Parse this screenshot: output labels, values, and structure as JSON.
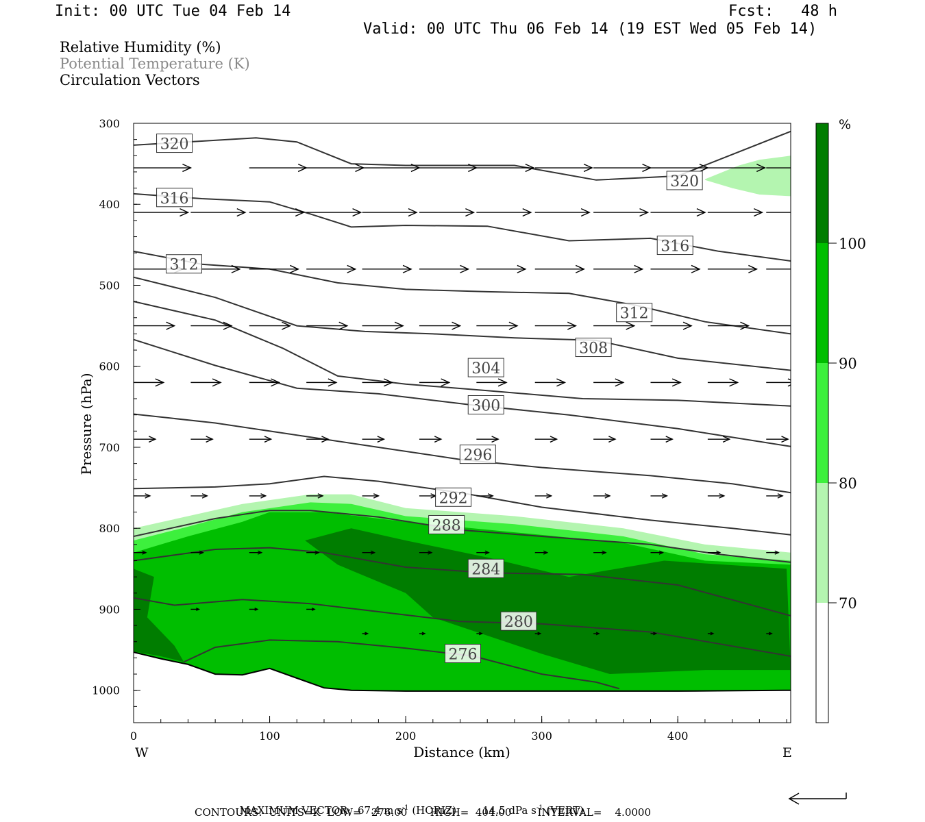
{
  "header": {
    "init": "Init: 00 UTC Tue 04 Feb 14",
    "fcst": "Fcst:   48 h",
    "valid": "Valid: 00 UTC Thu 06 Feb 14 (19 EST Wed 05 Feb 14)",
    "fields": [
      "Relative Humidity (%)",
      "Potential Temperature (K)",
      "Circulation Vectors"
    ]
  },
  "footer": {
    "max_vector_label": "MAXIMUM VECTOR:",
    "max_vector_horiz": "67.4 m s",
    "horiz_tag": "(HORIZ)",
    "max_vector_vert": "14.5 dPa s",
    "vert_tag": "(VERT)",
    "exp": "-1",
    "contours": "CONTOURS:  UNITS=K  LOW=   276.00       HIGH=  404.00        INTERVAL=    4.0000"
  },
  "colors": {
    "rh70": "#b4f5b0",
    "rh80": "#3df03d",
    "rh90": "#00be00",
    "rh100": "#007d00",
    "theta": "#333333",
    "vector": "#000000"
  },
  "chart_data": {
    "type": "cross-section",
    "xlabel": "Distance (km)",
    "ylabel": "Pressure (hPa)",
    "x_ticks": [
      0,
      100,
      200,
      300,
      400
    ],
    "y_ticks": [
      300,
      400,
      500,
      600,
      700,
      800,
      900,
      1000
    ],
    "xlim": [
      0,
      483
    ],
    "ylim": [
      300,
      1040
    ],
    "end_labels": {
      "left": "W",
      "right": "E"
    },
    "colorbar": {
      "unit": "%",
      "ticks": [
        70,
        80,
        90,
        100
      ]
    },
    "theta_contours": [
      {
        "value": 320,
        "x": [
          0,
          50,
          90,
          120,
          160,
          200,
          280,
          340,
          400,
          483
        ],
        "p": [
          327,
          322,
          318,
          323,
          350,
          352,
          352,
          370,
          365,
          310
        ],
        "labels": [
          {
            "text": "320",
            "x": 30,
            "p": 325
          },
          {
            "text": "320",
            "x": 405,
            "p": 371
          }
        ]
      },
      {
        "value": 316,
        "x": [
          0,
          50,
          100,
          130,
          160,
          200,
          260,
          320,
          380,
          430,
          483
        ],
        "p": [
          387,
          393,
          397,
          412,
          428,
          426,
          427,
          445,
          442,
          458,
          470
        ],
        "labels": [
          {
            "text": "316",
            "x": 30,
            "p": 392
          },
          {
            "text": "316",
            "x": 398,
            "p": 451
          }
        ]
      },
      {
        "value": 312,
        "x": [
          0,
          50,
          100,
          150,
          200,
          260,
          320,
          370,
          420,
          483
        ],
        "p": [
          458,
          474,
          480,
          497,
          505,
          508,
          510,
          525,
          545,
          560
        ],
        "labels": [
          {
            "text": "312",
            "x": 37,
            "p": 474
          },
          {
            "text": "312",
            "x": 368,
            "p": 534
          }
        ]
      },
      {
        "value": 308,
        "x": [
          0,
          60,
          120,
          170,
          220,
          280,
          340,
          400,
          483
        ],
        "p": [
          490,
          515,
          550,
          557,
          560,
          565,
          568,
          590,
          605
        ],
        "labels": [
          {
            "text": "308",
            "x": 338,
            "p": 577
          }
        ]
      },
      {
        "value": 304,
        "x": [
          0,
          60,
          110,
          150,
          200,
          260,
          330,
          400,
          483
        ],
        "p": [
          520,
          543,
          578,
          612,
          622,
          630,
          640,
          642,
          649
        ],
        "labels": [
          {
            "text": "304",
            "x": 259,
            "p": 602
          }
        ]
      },
      {
        "value": 300,
        "x": [
          0,
          60,
          120,
          180,
          250,
          320,
          400,
          483
        ],
        "p": [
          567,
          599,
          627,
          634,
          648,
          660,
          677,
          699
        ],
        "labels": [
          {
            "text": "300",
            "x": 259,
            "p": 648
          }
        ]
      },
      {
        "value": 296,
        "x": [
          0,
          60,
          120,
          180,
          240,
          300,
          380,
          440,
          483
        ],
        "p": [
          659,
          670,
          685,
          700,
          715,
          725,
          735,
          745,
          756
        ],
        "labels": [
          {
            "text": "296",
            "x": 253,
            "p": 709
          }
        ]
      },
      {
        "value": 292,
        "x": [
          0,
          60,
          100,
          140,
          180,
          240,
          300,
          380,
          440,
          483
        ],
        "p": [
          751,
          749,
          745,
          736,
          742,
          756,
          774,
          790,
          800,
          808
        ],
        "labels": [
          {
            "text": "292",
            "x": 235,
            "p": 762
          }
        ]
      },
      {
        "value": 288,
        "x": [
          0,
          60,
          100,
          130,
          180,
          240,
          300,
          380,
          430,
          483
        ],
        "p": [
          810,
          788,
          778,
          778,
          786,
          802,
          810,
          820,
          832,
          842
        ],
        "labels": [
          {
            "text": "288",
            "x": 230,
            "p": 796
          }
        ]
      },
      {
        "value": 284,
        "x": [
          0,
          60,
          100,
          140,
          200,
          260,
          330,
          400,
          483
        ],
        "p": [
          840,
          826,
          824,
          830,
          848,
          855,
          857,
          870,
          908
        ],
        "labels": [
          {
            "text": "284",
            "x": 259,
            "p": 850
          }
        ]
      },
      {
        "value": 280,
        "x": [
          0,
          30,
          80,
          130,
          180,
          240,
          300,
          380,
          483
        ],
        "p": [
          886,
          895,
          888,
          893,
          903,
          915,
          918,
          928,
          958
        ],
        "labels": [
          {
            "text": "280",
            "x": 283,
            "p": 915
          }
        ]
      },
      {
        "value": 276,
        "x": [
          37,
          60,
          100,
          150,
          200,
          250,
          300,
          340,
          357
        ],
        "p": [
          965,
          947,
          938,
          940,
          948,
          958,
          980,
          990,
          998
        ],
        "labels": [
          {
            "text": "276",
            "x": 242,
            "p": 955
          }
        ]
      }
    ],
    "terrain": {
      "x": [
        0,
        20,
        40,
        60,
        80,
        100,
        120,
        140,
        160,
        200,
        300,
        400,
        483
      ],
      "p": [
        953,
        961,
        968,
        980,
        981,
        973,
        985,
        997,
        1000,
        1001,
        1001,
        1001,
        1000
      ]
    },
    "rh_regions": [
      {
        "level": 70,
        "x": [
          0,
          40,
          80,
          130,
          160,
          200,
          280,
          360,
          420,
          483
        ],
        "p": [
          800,
          785,
          770,
          758,
          758,
          775,
          785,
          800,
          820,
          830
        ]
      },
      {
        "level": 80,
        "x": [
          0,
          40,
          80,
          130,
          160,
          200,
          280,
          360,
          420,
          483
        ],
        "p": [
          815,
          798,
          780,
          768,
          770,
          785,
          795,
          810,
          832,
          840
        ]
      },
      {
        "level": 90,
        "x": [
          0,
          40,
          80,
          100,
          140,
          200,
          280,
          360,
          420,
          483
        ],
        "p": [
          830,
          810,
          792,
          780,
          780,
          792,
          805,
          818,
          840,
          845
        ]
      },
      {
        "level": 100,
        "x": [
          126,
          160,
          200,
          260,
          320,
          390,
          480
        ],
        "p": [
          815,
          800,
          815,
          836,
          860,
          840,
          850
        ]
      }
    ],
    "upper_rh_patch": {
      "level": 70,
      "x": [
        420,
        445,
        460,
        483
      ],
      "p": [
        369,
        352,
        345,
        340
      ]
    },
    "vectors": [
      {
        "p": 355,
        "x": [
          0,
          85,
          127,
          168,
          210,
          252,
          295,
          338,
          380,
          422,
          465
        ],
        "dx": 42,
        "dy": 0
      },
      {
        "p": 410,
        "x": [
          0,
          42,
          85,
          127,
          168,
          210,
          252,
          295,
          338,
          380,
          422,
          465
        ],
        "dx": 40,
        "dy": 0
      },
      {
        "p": 480,
        "x": [
          0,
          42,
          85,
          127,
          168,
          210,
          252,
          295,
          338,
          380,
          422,
          465
        ],
        "dx": 36,
        "dy": 0
      },
      {
        "p": 550,
        "x": [
          0,
          42,
          85,
          127,
          168,
          210,
          252,
          295,
          338,
          380,
          422,
          465
        ],
        "dx": 30,
        "dy": 0
      },
      {
        "p": 620,
        "x": [
          0,
          42,
          85,
          127,
          168,
          210,
          252,
          295,
          338,
          380,
          422,
          465
        ],
        "dx": 22,
        "dy": 0
      },
      {
        "p": 690,
        "x": [
          0,
          42,
          85,
          127,
          168,
          210,
          252,
          295,
          338,
          380,
          422,
          465
        ],
        "dx": 16,
        "dy": 0
      },
      {
        "p": 760,
        "x": [
          0,
          42,
          85,
          127,
          168,
          210,
          252,
          295,
          338,
          380,
          422,
          465
        ],
        "dx": 12,
        "dy": 0
      },
      {
        "p": 830,
        "x": [
          0,
          42,
          85,
          127,
          168,
          210,
          252,
          295,
          338,
          380,
          422,
          465
        ],
        "dx": 9,
        "dy": 0
      },
      {
        "p": 900,
        "x": [
          42,
          85,
          127
        ],
        "dx": 6,
        "dy": 0
      },
      {
        "p": 930,
        "x": [
          168,
          210,
          252,
          295,
          338,
          380,
          422,
          465
        ],
        "dx": 4,
        "dy": 0
      }
    ]
  }
}
